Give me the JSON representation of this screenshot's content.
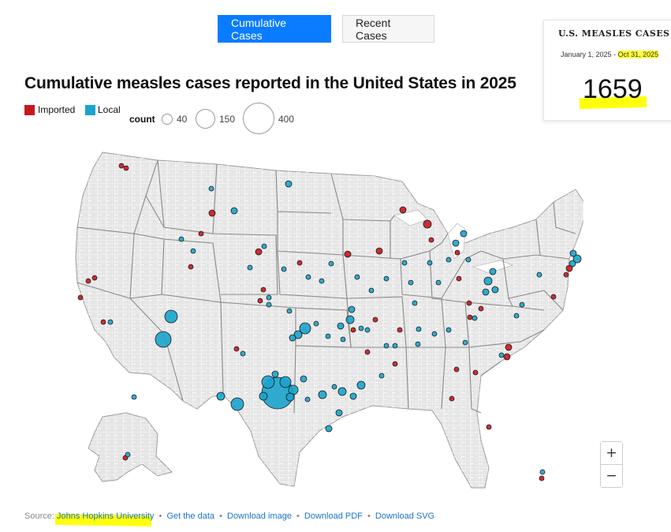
{
  "tabs": [
    {
      "label": "Cumulative Cases",
      "active": true
    },
    {
      "label": "Recent Cases",
      "active": false
    }
  ],
  "title": "Cumulative measles cases reported in the United States in 2025",
  "legend": {
    "imported_label": "Imported",
    "local_label": "Local",
    "imported_color": "#c8161d",
    "local_color": "#1aa3cc",
    "count_label": "count",
    "size_values": [
      "40",
      "150",
      "400"
    ]
  },
  "stat_card": {
    "title": "U.S. MEASLES CASES",
    "date_start": "January 1, 2025",
    "date_sep": "-",
    "date_end": "Oct 31, 2025",
    "count": "1659"
  },
  "source": {
    "prefix": "Source:",
    "org": "Johns Hopkins University",
    "links": [
      "Get the data",
      "Download image",
      "Download PDF",
      "Download SVG"
    ]
  },
  "zoom": {
    "in_label": "+",
    "out_label": "−"
  },
  "annotation_color": "#ffff00"
}
